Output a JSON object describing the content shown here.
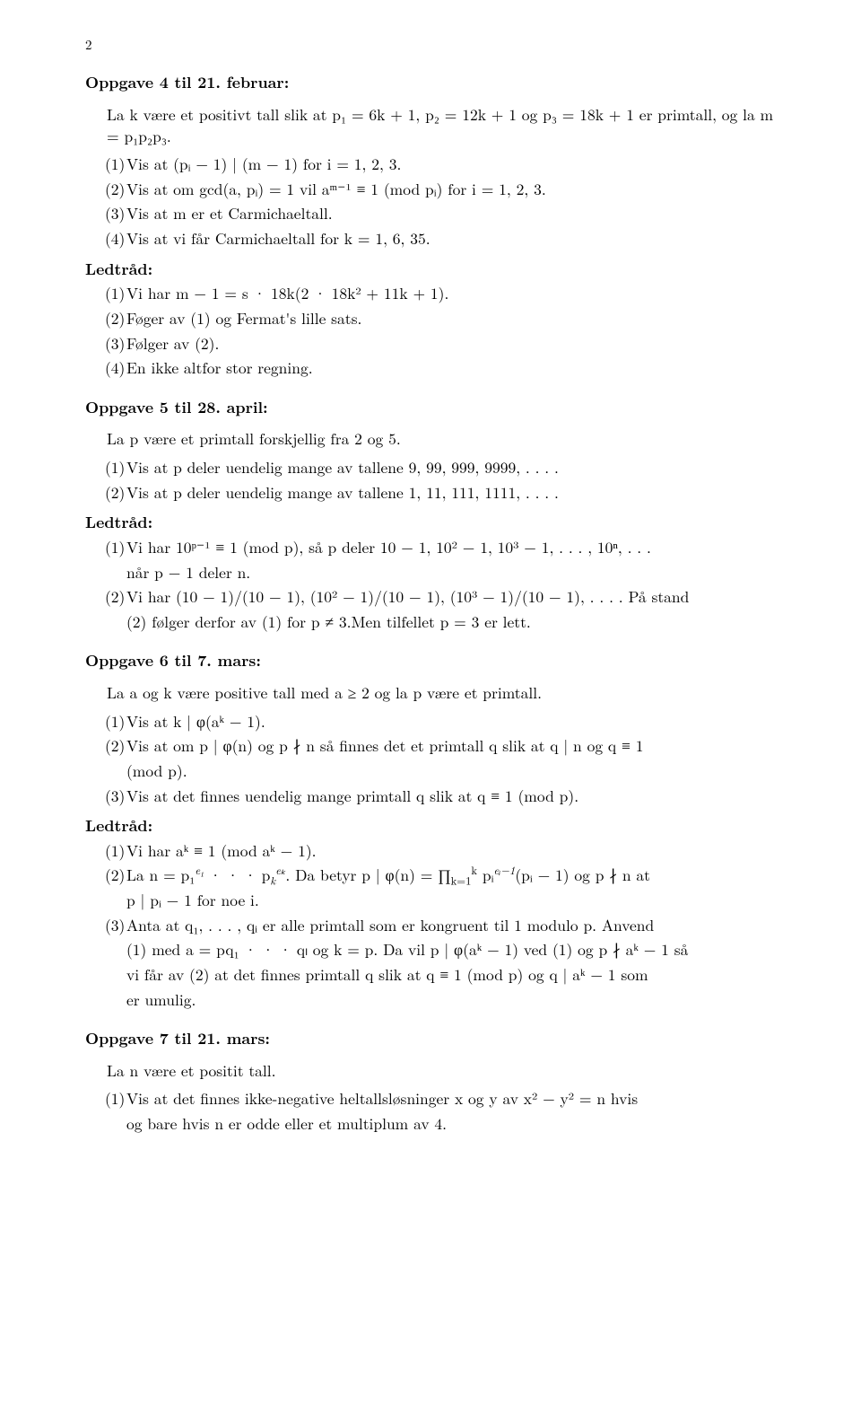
{
  "page_number": "2",
  "ex4": {
    "title": "Oppgave 4 til 21. februar:",
    "lead": "La k være et positivt tall slik at p₁ = 6k + 1, p₂ = 12k + 1 og p₃ = 18k + 1 er primtall, og la m = p₁p₂p₃.",
    "items": [
      "Vis at (pᵢ − 1) | (m − 1) for i = 1, 2, 3.",
      "Vis at om gcd(a, pᵢ) = 1 vil aᵐ⁻¹ ≡ 1 (mod pᵢ) for i = 1, 2, 3.",
      "Vis at m er et Carmichaeltall.",
      "Vis at vi får Carmichaeltall for k = 1, 6, 35."
    ],
    "hint": "Ledtråd:",
    "hints": [
      "Vi har m − 1 = s · 18k(2 · 18k² + 11k + 1).",
      "Føger av (1) og Fermat's lille sats.",
      "Følger av (2).",
      "En ikke altfor stor regning."
    ]
  },
  "ex5": {
    "title": "Oppgave 5 til 28. april:",
    "lead": "La p være et primtall forskjellig fra 2 og 5.",
    "items": [
      "Vis at p deler uendelig mange av tallene 9, 99, 999, 9999, . . . .",
      "Vis at p deler uendelig mange av tallene 1, 11, 111, 1111, . . . ."
    ],
    "hint": "Ledtråd:",
    "hint1a": "Vi har 10ᵖ⁻¹ ≡ 1 (mod p), så p deler 10 − 1, 10² − 1, 10³ − 1, . . . , 10ⁿ, . . .",
    "hint1b": "når p − 1 deler n.",
    "hint2a": "Vi har (10 − 1)/(10 − 1), (10² − 1)/(10 − 1), (10³ − 1)/(10 − 1), . . . . På stand",
    "hint2b": "(2) følger derfor av (1) for p ≠ 3.Men tilfellet p = 3 er lett."
  },
  "ex6": {
    "title": "Oppgave 6 til 7. mars:",
    "lead": "La a og k være positive tall med a ≥ 2 og la p være et primtall.",
    "item1": "Vis at k | φ(aᵏ − 1).",
    "item2a": "Vis at om p | φ(n) og p ∤ n så finnes det et primtall q slik at q | n og q ≡ 1",
    "item2b": "(mod p).",
    "item3": "Vis at det finnes uendelig mange primtall q slik at q ≡ 1 (mod p).",
    "hint": "Ledtråd:",
    "h1": "Vi har aᵏ ≡ 1 (mod aᵏ − 1).",
    "h2_pre": "La n = p₁",
    "h2_e1": "e₁",
    "h2_dots": " · · · p",
    "h2_k": "k",
    "h2_ek": "eₖ",
    "h2_mid": ".  Da betyr p | φ(n) = ∏",
    "h2_prod_low": "k=1",
    "h2_prod_up": "k",
    "h2_post1": " pᵢ",
    "h2_exp": "eᵢ−1",
    "h2_post2": "(pᵢ − 1) og p ∤ n at",
    "h2b": "p | pᵢ − 1 for noe i.",
    "h3a": "Anta at q₁, . . . , qᵢ er alle primtall som er kongruent til 1 modulo p. Anvend",
    "h3b": "(1) med a = pq₁ · · · qₗ og k = p. Da vil p | φ(aᵏ − 1) ved (1) og p ∤ aᵏ − 1 så",
    "h3c": "vi får av (2) at det finnes primtall q slik at q ≡ 1 (mod p) og q | aᵏ − 1 som",
    "h3d": "er umulig."
  },
  "ex7": {
    "title": "Oppgave 7 til 21. mars:",
    "lead": "La n være et positit tall.",
    "item1a": "Vis at det finnes ikke-negative heltallsløsninger x og y av x² − y² = n hvis",
    "item1b": "og bare hvis n er odde eller et multiplum av 4."
  },
  "labels": {
    "n1": "(1)",
    "n2": "(2)",
    "n3": "(3)",
    "n4": "(4)"
  }
}
